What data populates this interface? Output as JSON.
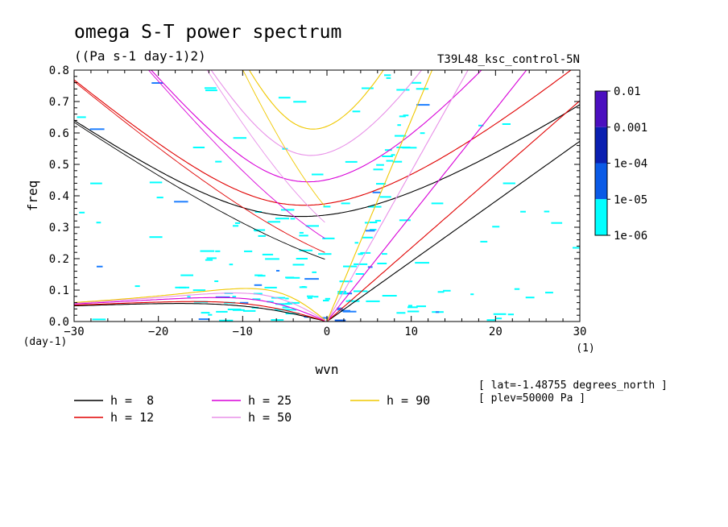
{
  "chart_data": {
    "type": "line",
    "title": "omega S-T power spectrum",
    "subtitle": "((Pa s-1 day-1)2)",
    "experiment": "T39L48_ksc_control-5N",
    "xlabel": "wvn",
    "ylabel": "freq",
    "x_unit": "(1)",
    "y_unit": "(day-1)",
    "xlim": [
      -30,
      30
    ],
    "ylim": [
      0,
      0.8
    ],
    "x_ticks": [
      "-30",
      "-20",
      "-10",
      "0",
      "10",
      "20",
      "30"
    ],
    "y_ticks": [
      "0.0",
      "0.1",
      "0.2",
      "0.3",
      "0.4",
      "0.5",
      "0.6",
      "0.7",
      "0.8"
    ],
    "colorbar": {
      "levels": [
        "0.01",
        "0.001",
        "1e-04",
        "1e-05",
        "1e-06"
      ],
      "colors": [
        "#4b0fbf",
        "#0a1fb0",
        "#0a5ae6",
        "#1f7fff",
        "#00ffff"
      ]
    },
    "series": [
      {
        "name": "h =  8",
        "color": "#000000",
        "h": 8
      },
      {
        "name": "h = 12",
        "color": "#e00000",
        "h": 12
      },
      {
        "name": "h = 25",
        "color": "#d800d8",
        "h": 25
      },
      {
        "name": "h = 50",
        "color": "#e890e8",
        "h": 50
      },
      {
        "name": "h = 90",
        "color": "#f0c800",
        "h": 90
      }
    ],
    "info": [
      "[ lat=-1.48755 degrees_north ]",
      "[ plev=50000 Pa ]"
    ],
    "grid": false,
    "legend_position": "bottom"
  }
}
